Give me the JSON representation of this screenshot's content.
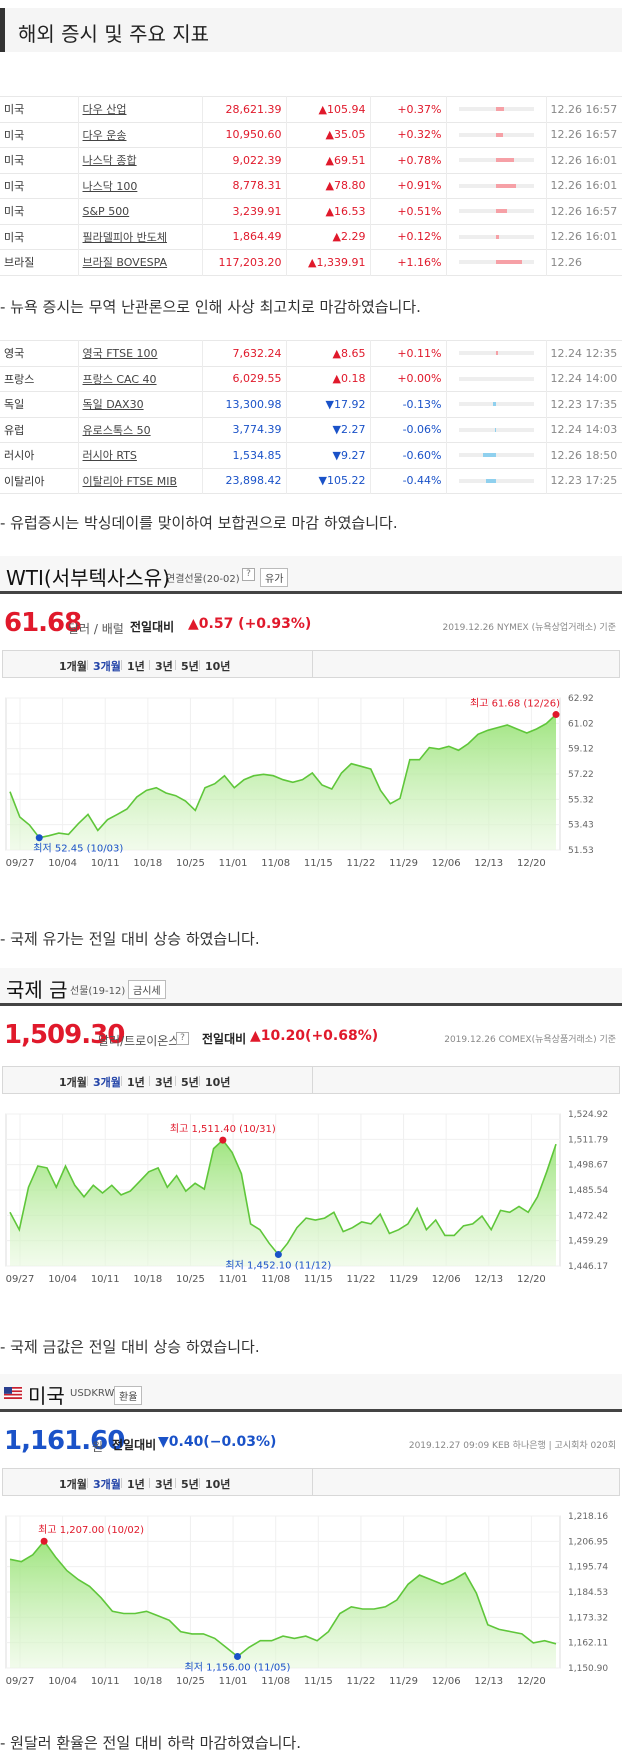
{
  "page_title": "해외 증시 및 주요 지표",
  "us_table": [
    {
      "country": "미국",
      "name": "다우 산업",
      "value": "28,621.39",
      "change": "105.94",
      "dir": "up",
      "pct": "+0.37%",
      "bar": 0.37,
      "time": "12.26 16:57"
    },
    {
      "country": "미국",
      "name": "다우 운송",
      "value": "10,950.60",
      "change": "35.05",
      "dir": "up",
      "pct": "+0.32%",
      "bar": 0.32,
      "time": "12.26 16:57"
    },
    {
      "country": "미국",
      "name": "나스닥 종합",
      "value": "9,022.39",
      "change": "69.51",
      "dir": "up",
      "pct": "+0.78%",
      "bar": 0.78,
      "time": "12.26 16:01"
    },
    {
      "country": "미국",
      "name": "나스닥 100",
      "value": "8,778.31",
      "change": "78.80",
      "dir": "up",
      "pct": "+0.91%",
      "bar": 0.91,
      "time": "12.26 16:01"
    },
    {
      "country": "미국",
      "name": "S&P 500",
      "value": "3,239.91",
      "change": "16.53",
      "dir": "up",
      "pct": "+0.51%",
      "bar": 0.51,
      "time": "12.26 16:57"
    },
    {
      "country": "미국",
      "name": "필라델피아 반도체",
      "value": "1,864.49",
      "change": "2.29",
      "dir": "up",
      "pct": "+0.12%",
      "bar": 0.12,
      "time": "12.26 16:01"
    },
    {
      "country": "브라질",
      "name": "브라질 BOVESPA",
      "value": "117,203.20",
      "change": "1,339.91",
      "dir": "up",
      "pct": "+1.16%",
      "bar": 1.16,
      "time": "12.26"
    }
  ],
  "note_us": "- 뉴욕 증시는 무역 난관론으로 인해 사상 최고치로 마감하였습니다.",
  "eu_table": [
    {
      "country": "영국",
      "name": "영국 FTSE 100",
      "value": "7,632.24",
      "change": "8.65",
      "dir": "up",
      "pct": "+0.11%",
      "bar": 0.11,
      "time": "12.24 12:35"
    },
    {
      "country": "프랑스",
      "name": "프랑스 CAC 40",
      "value": "6,029.55",
      "change": "0.18",
      "dir": "up",
      "pct": "+0.00%",
      "bar": 0.0,
      "time": "12.24 14:00"
    },
    {
      "country": "독일",
      "name": "독일 DAX30",
      "value": "13,300.98",
      "change": "17.92",
      "dir": "down",
      "pct": "-0.13%",
      "bar": 0.13,
      "time": "12.23 17:35"
    },
    {
      "country": "유럽",
      "name": "유로스톡스 50",
      "value": "3,774.39",
      "change": "2.27",
      "dir": "down",
      "pct": "-0.06%",
      "bar": 0.06,
      "time": "12.24 14:03"
    },
    {
      "country": "러시아",
      "name": "러시아 RTS",
      "value": "1,534.85",
      "change": "9.27",
      "dir": "down",
      "pct": "-0.60%",
      "bar": 0.6,
      "time": "12.26 18:50"
    },
    {
      "country": "이탈리아",
      "name": "이탈리아 FTSE MIB",
      "value": "23,898.42",
      "change": "105.22",
      "dir": "down",
      "pct": "-0.44%",
      "bar": 0.44,
      "time": "12.23 17:25"
    }
  ],
  "note_eu": "- 유럽증시는 박싱데이를 맞이하여 보합권으로 마감 하였습니다.",
  "tabs": [
    "1개월",
    "3개월",
    "1년",
    "3년",
    "5년",
    "10년"
  ],
  "oil": {
    "title": "WTI(서부텍사스유)",
    "sub": "연결선물(20-02)",
    "help": "?",
    "btn": "유가",
    "price": "61.68",
    "unit": "달러 / 배럴",
    "cmp_label": "전일대비",
    "cmp_val": "▲0.57 (+0.93%)",
    "source": "2019.12.26 NYMEX (뉴욕상업거래소) 기준",
    "note": "- 국제 유가는 전일 대비 상승 하였습니다."
  },
  "gold": {
    "title": "국제 금",
    "sub": "선물(19-12)",
    "btn": "금시세",
    "price": "1,509.30",
    "unit": "달러/트로이온스",
    "help": "?",
    "cmp_label": "전일대비",
    "cmp_val": "▲10.20(+0.68%)",
    "source": "2019.12.26 COMEX(뉴욕상품거래소) 기준",
    "note": "- 국제 금값은 전일 대비 상승 하였습니다."
  },
  "usd": {
    "title": "미국",
    "sub": "USDKRW",
    "btn": "환율",
    "price": "1,161.60",
    "unit": "원",
    "cmp_label": "전일대비",
    "cmp_val": "▼0.40(−0.03%)",
    "source": "2019.12.27 09:09 KEB 하나은행 | 고시회차 020회",
    "note": "- 원달러 환율은 전일 대비 하락 마감하였습니다."
  },
  "chart_data": [
    {
      "type": "area",
      "x_ticks": [
        "09/27",
        "10/04",
        "10/11",
        "10/18",
        "10/25",
        "11/01",
        "11/08",
        "11/15",
        "11/22",
        "11/29",
        "12/06",
        "12/13",
        "12/20"
      ],
      "y_ticks": [
        "62.92",
        "61.02",
        "59.12",
        "57.22",
        "55.32",
        "53.43",
        "51.53"
      ],
      "ylim": [
        51.53,
        62.92
      ],
      "values": [
        55.9,
        54.0,
        53.4,
        52.45,
        52.6,
        52.8,
        52.7,
        53.5,
        54.2,
        53.0,
        53.8,
        54.2,
        54.6,
        55.5,
        56.0,
        56.2,
        55.8,
        55.6,
        55.2,
        54.5,
        56.2,
        56.5,
        57.1,
        56.2,
        56.8,
        57.1,
        57.2,
        57.1,
        56.8,
        56.6,
        56.8,
        57.3,
        56.4,
        56.1,
        57.3,
        58.0,
        57.8,
        57.6,
        56.0,
        55.0,
        55.4,
        58.3,
        58.3,
        59.2,
        59.1,
        59.3,
        59.0,
        59.5,
        60.2,
        60.5,
        60.7,
        60.9,
        60.6,
        60.3,
        60.6,
        61.0,
        61.68
      ],
      "low_label": "최저 52.45 (10/03)",
      "low_index": 3,
      "high_label": "최고 61.68 (12/26)",
      "high_index": 56,
      "high_color": "#e0192b",
      "low_color": "#1a52c8"
    },
    {
      "type": "area",
      "x_ticks": [
        "09/27",
        "10/04",
        "10/11",
        "10/18",
        "10/25",
        "11/01",
        "11/08",
        "11/15",
        "11/22",
        "11/29",
        "12/06",
        "12/13",
        "12/20"
      ],
      "y_ticks": [
        "1,524.92",
        "1,511.79",
        "1,498.67",
        "1,485.54",
        "1,472.42",
        "1,459.29",
        "1,446.17"
      ],
      "ylim": [
        1446.17,
        1524.92
      ],
      "values": [
        1474,
        1465,
        1487,
        1498,
        1497,
        1487,
        1498,
        1488,
        1482,
        1488,
        1484,
        1488,
        1483,
        1485,
        1490,
        1495,
        1497,
        1487,
        1493,
        1485,
        1489,
        1486,
        1507,
        1511.4,
        1505,
        1494,
        1468,
        1465,
        1458,
        1452.1,
        1458,
        1466,
        1471,
        1470,
        1471,
        1474,
        1464,
        1466,
        1469,
        1468,
        1473,
        1463,
        1465,
        1468,
        1476,
        1465,
        1470,
        1462,
        1462,
        1467,
        1468,
        1472,
        1465,
        1475,
        1474,
        1477,
        1474,
        1482,
        1495,
        1509.3
      ],
      "low_label": "최저 1,452.10 (11/12)",
      "low_index": 29,
      "high_label": "최고 1,511.40 (10/31)",
      "high_index": 23,
      "high_color": "#e0192b",
      "low_color": "#1a52c8"
    },
    {
      "type": "area",
      "x_ticks": [
        "09/27",
        "10/04",
        "10/11",
        "10/18",
        "10/25",
        "11/01",
        "11/08",
        "11/15",
        "11/22",
        "11/29",
        "12/06",
        "12/13",
        "12/20"
      ],
      "y_ticks": [
        "1,218.16",
        "1,206.95",
        "1,195.74",
        "1,184.53",
        "1,173.32",
        "1,162.11",
        "1,150.90"
      ],
      "ylim": [
        1150.9,
        1218.16
      ],
      "values": [
        1199,
        1198,
        1201,
        1207.0,
        1200,
        1194,
        1190,
        1187,
        1182,
        1176,
        1175,
        1175,
        1176,
        1174,
        1172,
        1167,
        1166,
        1166,
        1164,
        1160,
        1156.0,
        1160,
        1163,
        1163,
        1165,
        1164,
        1165,
        1163,
        1167,
        1175,
        1178,
        1177,
        1177,
        1178,
        1181,
        1188,
        1192,
        1190,
        1188,
        1190,
        1193,
        1184,
        1170,
        1168,
        1167,
        1166,
        1162,
        1163,
        1161.6
      ],
      "low_label": "최저 1,156.00 (11/05)",
      "low_index": 20,
      "high_label": "최고 1,207.00 (10/02)",
      "high_index": 3,
      "high_color": "#e0192b",
      "low_color": "#1a52c8"
    }
  ]
}
